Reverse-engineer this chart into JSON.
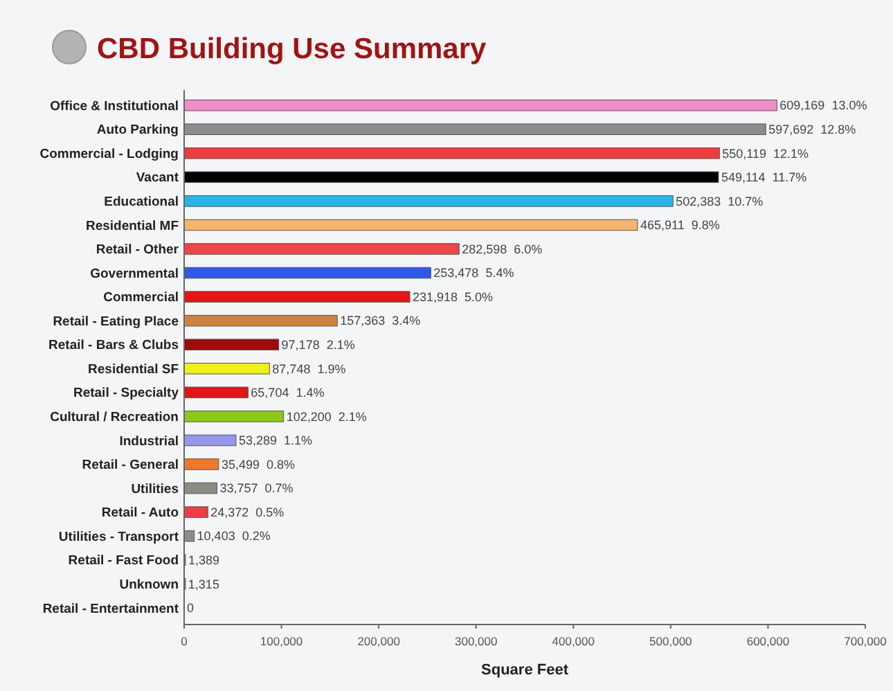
{
  "chart_data": {
    "type": "bar",
    "orientation": "horizontal",
    "title": "CBD Building Use Summary",
    "xlabel": "Square Feet",
    "categories": [
      "Office & Institutional",
      "Auto Parking",
      "Commercial - Lodging",
      "Vacant",
      "Educational",
      "Residential MF",
      "Retail - Other",
      "Governmental",
      "Commercial",
      "Retail - Eating Place",
      "Retail - Bars & Clubs",
      "Residential SF",
      "Retail - Specialty",
      "Cultural / Recreation",
      "Industrial",
      "Retail - General",
      "Utilities",
      "Retail - Auto",
      "Utilities - Transport",
      "Retail - Fast Food",
      "Unknown",
      "Retail - Entertainment"
    ],
    "values": [
      609169,
      597692,
      550119,
      549114,
      502383,
      465911,
      282598,
      253478,
      231918,
      157363,
      97178,
      87748,
      65704,
      102200,
      53289,
      35499,
      33757,
      24372,
      10403,
      1389,
      1315,
      0
    ],
    "value_labels": [
      "609,169  13.0%",
      "597,692  12.8%",
      "550,119  12.1%",
      "549,114  11.7%",
      "502,383  10.7%",
      "465,911  9.8%",
      "282,598  6.0%",
      "253,478  5.4%",
      "231,918  5.0%",
      "157,363  3.4%",
      "97,178  2.1%",
      "87,748  1.9%",
      "65,704  1.4%",
      "102,200  2.1%",
      "53,289  1.1%",
      "35,499  0.8%",
      "33,757  0.7%",
      "24,372  0.5%",
      "10,403  0.2%",
      "1,389",
      "1,315",
      "0"
    ],
    "colors": [
      "#f08cc8",
      "#8c8c8c",
      "#f03c3c",
      "#000000",
      "#28b4e6",
      "#f5b46e",
      "#f04646",
      "#2d5ae6",
      "#eb1414",
      "#d2823c",
      "#a00a0a",
      "#f0f014",
      "#e61414",
      "#8cc814",
      "#9696f0",
      "#f07828",
      "#8c8c82",
      "#f03c46",
      "#8c8c8c",
      "#8c8c8c",
      "#8c8c8c",
      "#8c8c8c"
    ],
    "xlim": [
      0,
      700000
    ],
    "xticks": [
      {
        "value": 0,
        "label": "0"
      },
      {
        "value": 100000,
        "label": "100,000"
      },
      {
        "value": 200000,
        "label": "200,000"
      },
      {
        "value": 300000,
        "label": "300,000"
      },
      {
        "value": 400000,
        "label": "400,000"
      },
      {
        "value": 500000,
        "label": "500,000"
      },
      {
        "value": 600000,
        "label": "600,000"
      },
      {
        "value": 700000,
        "label": "700,000"
      }
    ],
    "grid": false
  }
}
